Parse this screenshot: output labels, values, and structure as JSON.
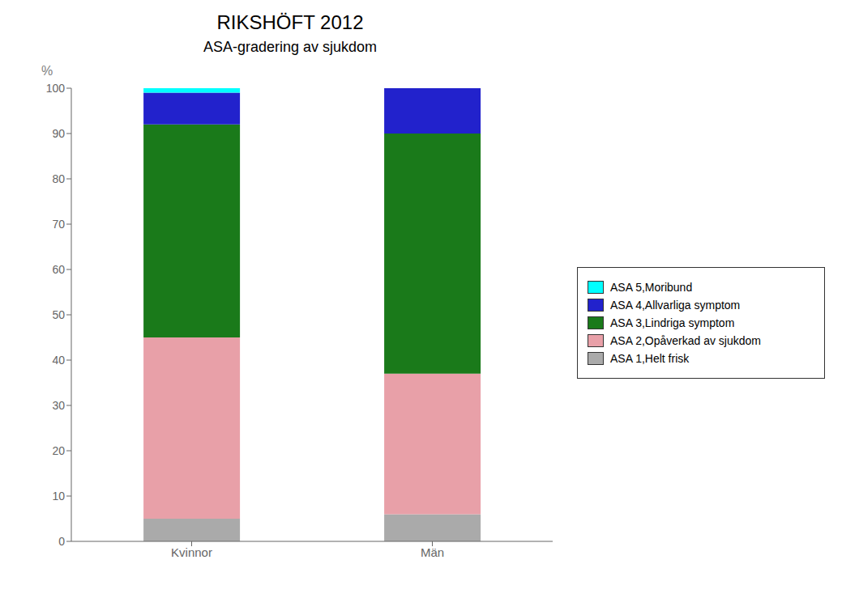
{
  "chart_data": {
    "type": "bar",
    "title": "RIKSHÖFT 2012",
    "subtitle": "ASA-gradering av sjukdom",
    "ylabel": "%",
    "stacked": true,
    "categories": [
      "Kvinnor",
      "Män"
    ],
    "series": [
      {
        "name": "ASA 1,Helt frisk",
        "color": "#aaaaaa",
        "values": [
          5,
          6
        ]
      },
      {
        "name": "ASA 2,Opåverkad av sjukdom",
        "color": "#e8a0a8",
        "values": [
          40,
          31
        ]
      },
      {
        "name": "ASA 3,Lindriga symptom",
        "color": "#1a7a1a",
        "values": [
          47,
          53
        ]
      },
      {
        "name": "ASA 4,Allvarliga symptom",
        "color": "#2222cc",
        "values": [
          7,
          10
        ]
      },
      {
        "name": "ASA 5,Moribund",
        "color": "#00ffff",
        "values": [
          1,
          0
        ]
      }
    ],
    "ylim": [
      0,
      100
    ],
    "yticks": [
      0,
      10,
      20,
      30,
      40,
      50,
      60,
      70,
      80,
      90,
      100
    ],
    "grid": false,
    "legend": "right"
  }
}
